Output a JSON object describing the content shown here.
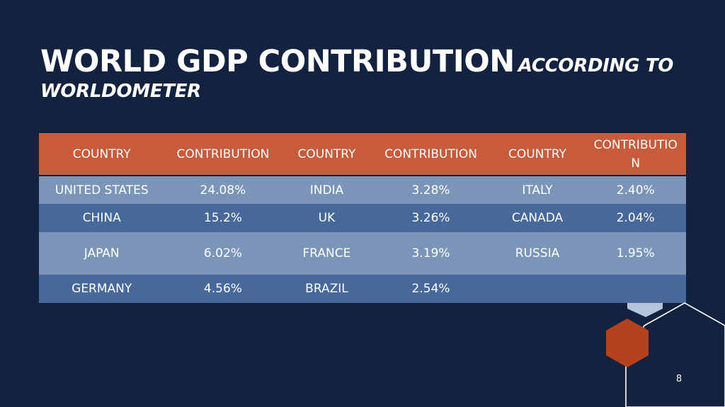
{
  "slide": {
    "title": "WORLD GDP CONTRIBUTION",
    "subtitle": "ACCORDING TO WORLDOMETER",
    "page_number": "8"
  },
  "table": {
    "headers": [
      "COUNTRY",
      "CONTRIBUTION",
      "COUNTRY",
      "CONTRIBUTION",
      "COUNTRY",
      "CONTRIBUTION"
    ],
    "rows": [
      [
        "UNITED STATES",
        "24.08%",
        "INDIA",
        "3.28%",
        "ITALY",
        "2.40%"
      ],
      [
        "CHINA",
        "15.2%",
        "UK",
        "3.26%",
        "CANADA",
        "2.04%"
      ],
      [
        "JAPAN",
        "6.02%",
        "FRANCE",
        "3.19%",
        "RUSSIA",
        "1.95%"
      ],
      [
        "GERMANY",
        "4.56%",
        "BRAZIL",
        "2.54%",
        "",
        ""
      ]
    ]
  },
  "colors": {
    "background": "#13233f",
    "header": "#c75b3c",
    "row_light": "#7a95b8",
    "row_dark": "#46689b",
    "hexagon_accent": "#b5421c",
    "hexagon_light": "#b3c4dc"
  },
  "decorations": [
    "hexagon-outline",
    "hexagon-filled-orange",
    "hexagon-light-blue"
  ]
}
